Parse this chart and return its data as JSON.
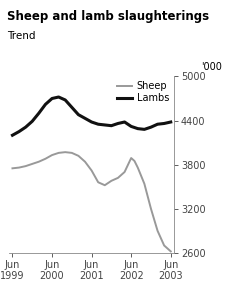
{
  "title": "Sheep and lamb slaughterings",
  "subtitle": "Trend",
  "ylabel": "'000",
  "ylim": [
    2600,
    5000
  ],
  "yticks": [
    2600,
    3200,
    3800,
    4400,
    5000
  ],
  "xlabels": [
    "Jun\n1999",
    "Jun\n2000",
    "Jun\n2001",
    "Jun\n2002",
    "Jun\n2003"
  ],
  "xtick_positions": [
    0,
    12,
    24,
    36,
    48
  ],
  "sheep_color": "#999999",
  "lambs_color": "#111111",
  "background": "#ffffff",
  "sheep_x": [
    0,
    2,
    4,
    6,
    8,
    10,
    12,
    14,
    16,
    18,
    20,
    22,
    24,
    26,
    28,
    30,
    32,
    34,
    36,
    37,
    38,
    40,
    42,
    44,
    46,
    48
  ],
  "sheep_y": [
    3750,
    3760,
    3780,
    3810,
    3840,
    3880,
    3930,
    3960,
    3970,
    3960,
    3920,
    3840,
    3720,
    3560,
    3520,
    3580,
    3620,
    3700,
    3890,
    3850,
    3760,
    3540,
    3200,
    2900,
    2700,
    2620
  ],
  "lambs_x": [
    0,
    2,
    4,
    6,
    8,
    10,
    12,
    14,
    16,
    18,
    20,
    22,
    24,
    26,
    28,
    30,
    32,
    34,
    36,
    38,
    40,
    42,
    44,
    46,
    48
  ],
  "lambs_y": [
    4200,
    4250,
    4310,
    4390,
    4500,
    4620,
    4700,
    4720,
    4680,
    4580,
    4480,
    4430,
    4380,
    4350,
    4340,
    4330,
    4360,
    4380,
    4320,
    4290,
    4280,
    4310,
    4350,
    4360,
    4380
  ]
}
